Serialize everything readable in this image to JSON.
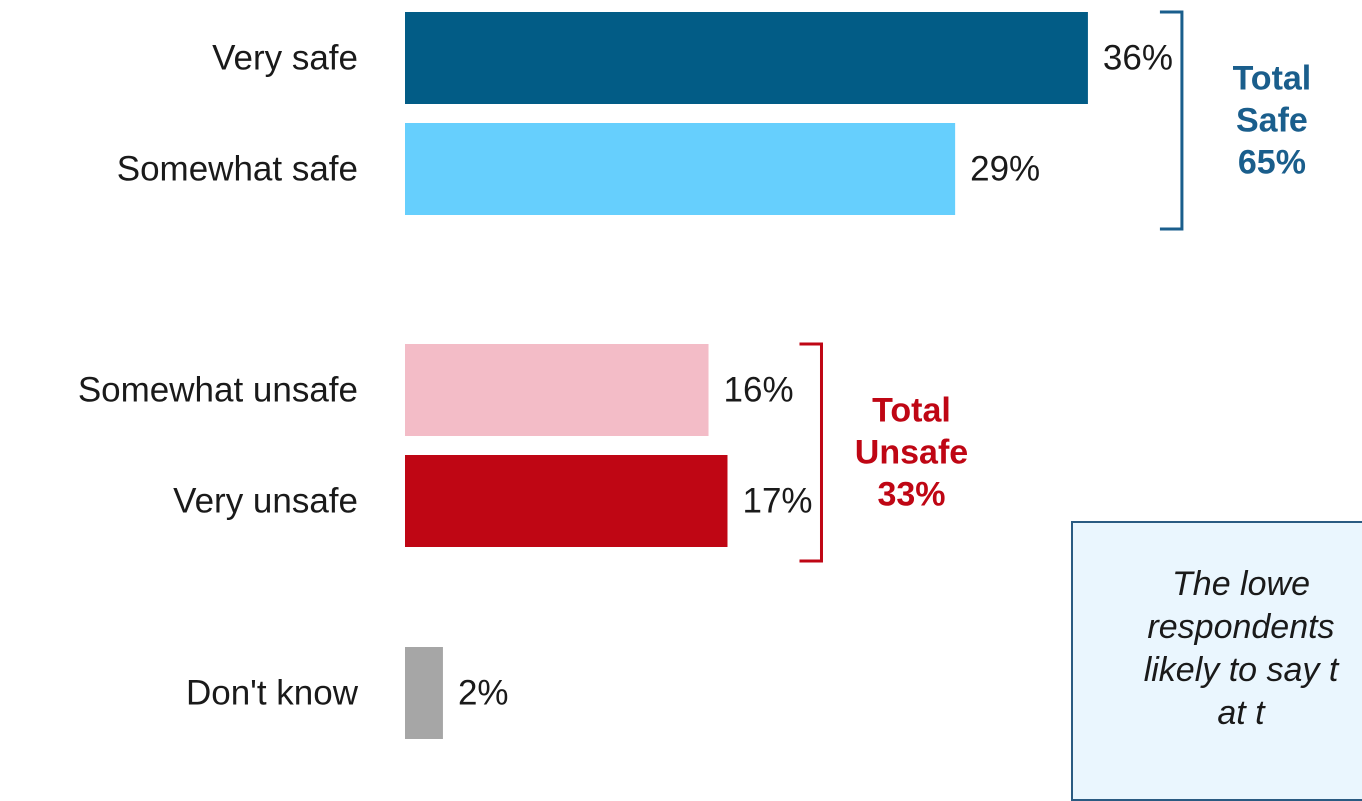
{
  "chart_data": {
    "type": "bar",
    "orientation": "horizontal",
    "title": "",
    "xlabel": "",
    "ylabel": "",
    "xlim": [
      0,
      50
    ],
    "grid": false,
    "legend": "none",
    "categories": [
      "Very safe",
      "Somewhat safe",
      "Somewhat unsafe",
      "Very unsafe",
      "Don't know"
    ],
    "values": [
      36,
      29,
      16,
      17,
      2
    ],
    "value_labels": [
      "36%",
      "29%",
      "16%",
      "17%",
      "2%"
    ],
    "bar_colors": [
      "#025c86",
      "#66cffd",
      "#f3bcc7",
      "#bf0614",
      "#a6a6a6"
    ],
    "groups": [
      {
        "lines": [
          "Total",
          "Safe",
          "65%"
        ],
        "members": [
          0,
          1
        ],
        "color": "#1a5e8c"
      },
      {
        "lines": [
          "Total",
          "Unsafe",
          "33%"
        ],
        "members": [
          2,
          3
        ],
        "color": "#bf0614"
      }
    ],
    "annotation": {
      "lines": [
        "The lowe",
        "respondents",
        "likely to say t",
        "at t"
      ]
    }
  }
}
